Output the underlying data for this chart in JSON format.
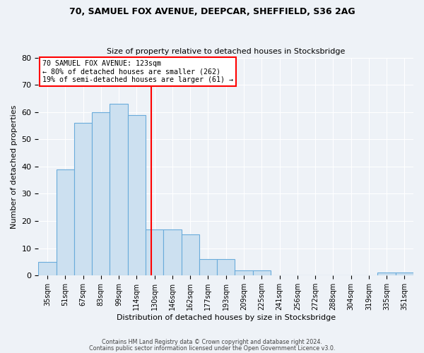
{
  "title1": "70, SAMUEL FOX AVENUE, DEEPCAR, SHEFFIELD, S36 2AG",
  "title2": "Size of property relative to detached houses in Stocksbridge",
  "xlabel": "Distribution of detached houses by size in Stocksbridge",
  "ylabel": "Number of detached properties",
  "categories": [
    "35sqm",
    "51sqm",
    "67sqm",
    "83sqm",
    "99sqm",
    "114sqm",
    "130sqm",
    "146sqm",
    "162sqm",
    "177sqm",
    "193sqm",
    "209sqm",
    "225sqm",
    "241sqm",
    "256sqm",
    "272sqm",
    "288sqm",
    "304sqm",
    "319sqm",
    "335sqm",
    "351sqm"
  ],
  "values": [
    5,
    39,
    56,
    60,
    63,
    59,
    17,
    17,
    15,
    6,
    6,
    2,
    2,
    0,
    0,
    0,
    0,
    0,
    0,
    1,
    1
  ],
  "bar_color": "#cce0f0",
  "bar_edge_color": "#6aabdb",
  "vline_x": 5.82,
  "vline_color": "red",
  "ylim": [
    0,
    80
  ],
  "yticks": [
    0,
    10,
    20,
    30,
    40,
    50,
    60,
    70,
    80
  ],
  "annotation_title": "70 SAMUEL FOX AVENUE: 123sqm",
  "annotation_line1": "← 80% of detached houses are smaller (262)",
  "annotation_line2": "19% of semi-detached houses are larger (61) →",
  "annotation_box_color": "#ffffff",
  "annotation_box_edge": "red",
  "footer1": "Contains HM Land Registry data © Crown copyright and database right 2024.",
  "footer2": "Contains public sector information licensed under the Open Government Licence v3.0.",
  "background_color": "#eef2f7",
  "plot_background": "#eef2f7",
  "grid_color": "#ffffff",
  "title1_fontsize": 9.0,
  "title2_fontsize": 8.0
}
